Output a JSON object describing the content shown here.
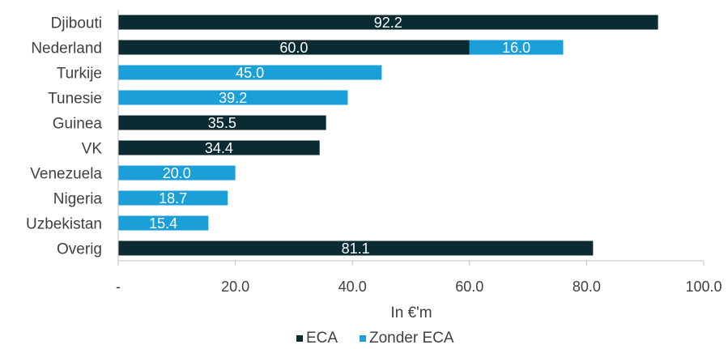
{
  "chart_data": {
    "type": "bar",
    "orientation": "horizontal",
    "stacked": true,
    "categories": [
      "Djibouti",
      "Nederland",
      "Turkije",
      "Tunesie",
      "Guinea",
      "VK",
      "Venezuela",
      "Nigeria",
      "Uzbekistan",
      "Overig"
    ],
    "series": [
      {
        "name": "ECA",
        "color": "#0b2b33",
        "values": [
          92.2,
          60.0,
          null,
          null,
          35.5,
          34.4,
          null,
          null,
          null,
          81.1
        ]
      },
      {
        "name": "Zonder ECA",
        "color": "#1a9fd8",
        "values": [
          null,
          16.0,
          45.0,
          39.2,
          null,
          null,
          20.0,
          18.7,
          15.4,
          null
        ]
      }
    ],
    "xlabel": "In €'m",
    "xlim": [
      0,
      100
    ],
    "xticks": [
      0,
      20,
      40,
      60,
      80,
      100
    ],
    "xtick_labels": [
      "-",
      "20.0",
      "40.0",
      "60.0",
      "80.0",
      "100.0"
    ],
    "grid": false,
    "legend_position": "bottom"
  }
}
